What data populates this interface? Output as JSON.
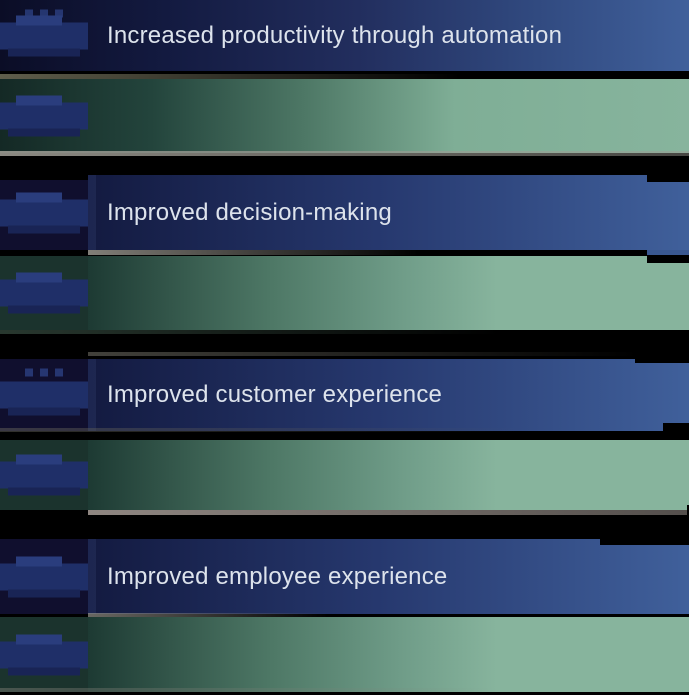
{
  "colors": {
    "background": "#000000",
    "bar_blue_dark": "#131a40",
    "bar_blue_mid": "#26386e",
    "bar_blue_light": "#40609b",
    "bar_green_dark": "#1d3a33",
    "bar_green_mid": "#4d7765",
    "bar_green_light": "#87b49d",
    "track_navy": "#100f2e",
    "track_teal": "#1b332d",
    "blob_blue": "#1f2f68",
    "blob_blue_light": "#2a3d7d",
    "blob_blue_dark": "#192455",
    "label_text": "#dde3ec"
  },
  "chart_data": {
    "type": "bar",
    "orientation": "horizontal",
    "title": "",
    "categories": [
      "Increased productivity through automation",
      "Improved decision-making",
      "Improved customer experience",
      "Improved employee experience"
    ],
    "series": [
      {
        "name": "blue-bar",
        "color": "#40609b",
        "bar_start_frac": [
          0.0,
          0.128,
          0.128,
          0.128
        ],
        "bar_end_frac": [
          1.0,
          1.0,
          1.0,
          1.0
        ]
      },
      {
        "name": "green-bar",
        "color": "#87b49d",
        "bar_start_frac": [
          0.0,
          0.128,
          0.128,
          0.128
        ],
        "bar_end_frac": [
          1.0,
          1.0,
          1.0,
          1.0
        ]
      }
    ],
    "value_labels_legible": false,
    "value_label_style": "pixelated royal-blue blob at left edge of every bar",
    "axes_visible": false,
    "grid": false,
    "legend": false,
    "background": "#000000"
  }
}
